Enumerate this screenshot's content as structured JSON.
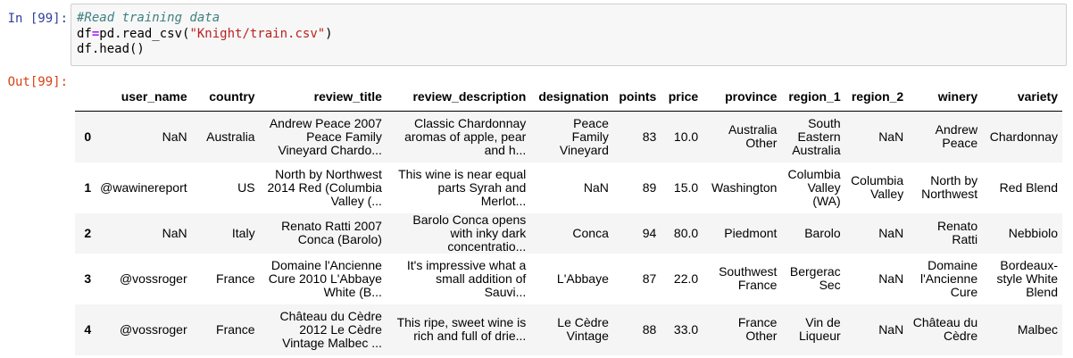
{
  "input_cell": {
    "prompt": "In [99]:",
    "comment": "#Read training data",
    "line2_pre": "df",
    "line2_op": "=",
    "line2_call": "pd.read_csv(",
    "line2_str": "\"Knight/train.csv\"",
    "line2_post": ")",
    "line3": "df.head()"
  },
  "output_cell": {
    "prompt": "Out[99]:"
  },
  "table": {
    "columns": [
      "",
      "user_name",
      "country",
      "review_title",
      "review_description",
      "designation",
      "points",
      "price",
      "province",
      "region_1",
      "region_2",
      "winery",
      "variety"
    ],
    "rows": [
      [
        "0",
        "NaN",
        "Australia",
        "Andrew Peace 2007 Peace Family Vineyard Chardo...",
        "Classic Chardonnay aromas of apple, pear and h...",
        "Peace Family Vineyard",
        "83",
        "10.0",
        "Australia Other",
        "South Eastern Australia",
        "NaN",
        "Andrew Peace",
        "Chardonnay"
      ],
      [
        "1",
        "@wawinereport",
        "US",
        "North by Northwest 2014 Red (Columbia Valley (...",
        "This wine is near equal parts Syrah and Merlot...",
        "NaN",
        "89",
        "15.0",
        "Washington",
        "Columbia Valley (WA)",
        "Columbia Valley",
        "North by Northwest",
        "Red Blend"
      ],
      [
        "2",
        "NaN",
        "Italy",
        "Renato Ratti 2007 Conca (Barolo)",
        "Barolo Conca opens with inky dark concentratio...",
        "Conca",
        "94",
        "80.0",
        "Piedmont",
        "Barolo",
        "NaN",
        "Renato Ratti",
        "Nebbiolo"
      ],
      [
        "3",
        "@vossroger",
        "France",
        "Domaine l'Ancienne Cure 2010 L'Abbaye White (B...",
        "It's impressive what a small addition of Sauvi...",
        "L'Abbaye",
        "87",
        "22.0",
        "Southwest France",
        "Bergerac Sec",
        "NaN",
        "Domaine l'Ancienne Cure",
        "Bordeaux-style White Blend"
      ],
      [
        "4",
        "@vossroger",
        "France",
        "Château du Cèdre 2012 Le Cèdre Vintage Malbec ...",
        "This ripe, sweet wine is rich and full of drie...",
        "Le Cèdre Vintage",
        "88",
        "33.0",
        "France Other",
        "Vin de Liqueur",
        "NaN",
        "Château du Cèdre",
        "Malbec"
      ]
    ]
  }
}
